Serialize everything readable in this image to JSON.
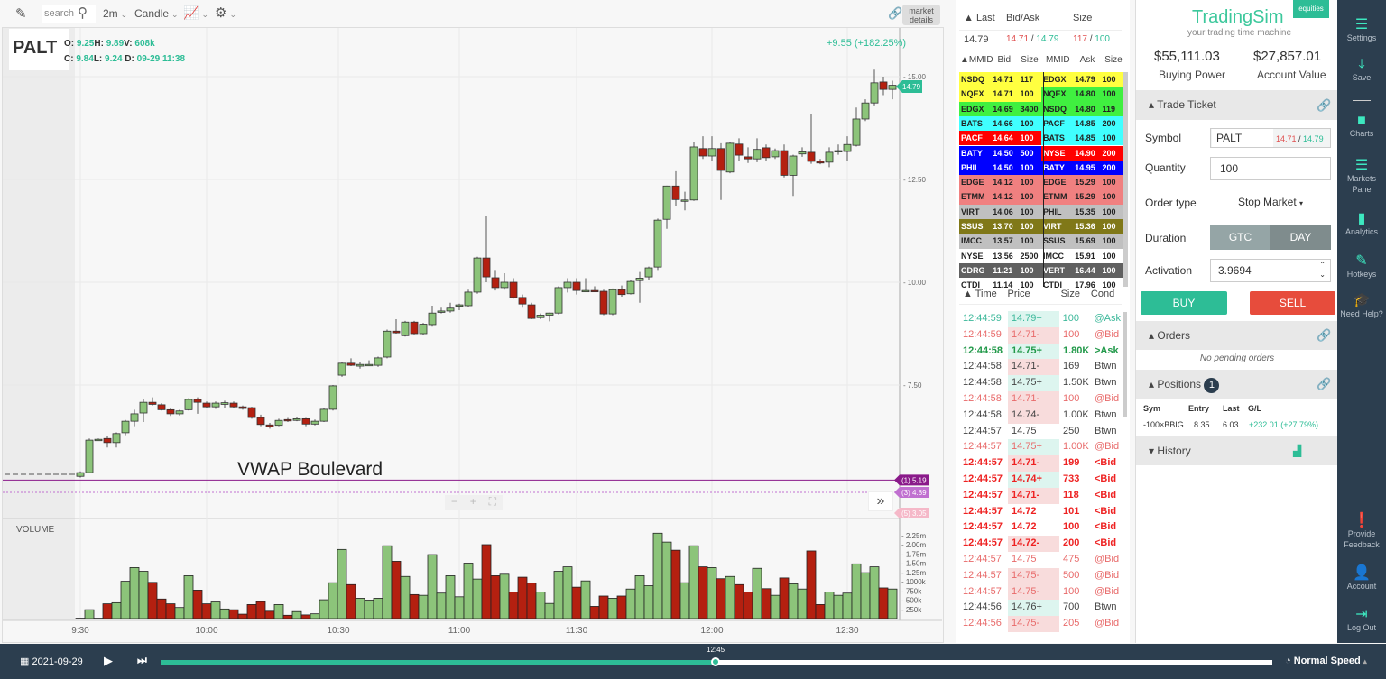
{
  "toolbar": {
    "search_placeholder": "search",
    "interval": "2m",
    "chart_type": "Candle",
    "market_details": "market details"
  },
  "symbol": {
    "ticker": "PALT",
    "o_label": "O:",
    "o": "9.25",
    "h_label": "H:",
    "h": "9.89",
    "v_label": "V:",
    "v": "608k",
    "c_label": "C:",
    "c": "9.84",
    "l_label": "L:",
    "l": "9.24",
    "d_label": "D:",
    "d": "09-29 11:38",
    "change": "+9.55 (+182.25%)",
    "last_tag": "14.79"
  },
  "colors": {
    "up": "#8cc47a",
    "down": "#b42010",
    "accent": "#2dbd96",
    "vwap1": "#8a1a8a",
    "vwap3": "#c070d0",
    "vwap5": "#f5b8c8"
  },
  "chart_data": {
    "type": "candlestick",
    "price_ticks": [
      15.0,
      12.5,
      10.0,
      7.5
    ],
    "price_tick_labels": [
      "15.00",
      "12.50",
      "10.00",
      "7.50"
    ],
    "x_ticks": [
      {
        "label": "9:30",
        "bar": 0
      },
      {
        "label": "10:00",
        "bar": 14
      },
      {
        "label": "10:30",
        "bar": 28.6
      },
      {
        "label": "11:00",
        "bar": 42
      },
      {
        "label": "11:30",
        "bar": 55
      },
      {
        "label": "12:00",
        "bar": 70
      },
      {
        "label": "12:30",
        "bar": 85
      }
    ],
    "ohlc": [
      [
        5.28,
        5.4,
        5.25,
        5.37
      ],
      [
        5.37,
        6.2,
        5.35,
        6.16
      ],
      [
        6.17,
        6.2,
        6.15,
        6.18
      ],
      [
        6.2,
        6.25,
        5.98,
        6.1
      ],
      [
        6.1,
        6.35,
        5.98,
        6.32
      ],
      [
        6.34,
        6.65,
        6.28,
        6.62
      ],
      [
        6.62,
        6.9,
        6.5,
        6.8
      ],
      [
        6.82,
        7.15,
        6.6,
        7.08
      ],
      [
        7.08,
        7.2,
        7.0,
        7.03
      ],
      [
        7.02,
        7.06,
        6.88,
        6.9
      ],
      [
        6.9,
        6.95,
        6.75,
        6.8
      ],
      [
        6.8,
        6.9,
        6.76,
        6.87
      ],
      [
        6.9,
        7.18,
        6.88,
        7.15
      ],
      [
        7.15,
        7.2,
        6.8,
        7.08
      ],
      [
        7.06,
        7.1,
        6.93,
        6.97
      ],
      [
        6.97,
        7.1,
        6.92,
        7.06
      ],
      [
        7.03,
        7.12,
        6.95,
        7.07
      ],
      [
        7.06,
        7.1,
        6.94,
        6.97
      ],
      [
        6.97,
        7.0,
        6.9,
        6.93
      ],
      [
        6.95,
        6.97,
        6.68,
        6.71
      ],
      [
        6.71,
        6.78,
        6.5,
        6.54
      ],
      [
        6.53,
        6.58,
        6.44,
        6.49
      ],
      [
        6.52,
        6.68,
        6.5,
        6.64
      ],
      [
        6.66,
        6.7,
        6.6,
        6.63
      ],
      [
        6.64,
        6.72,
        6.62,
        6.68
      ],
      [
        6.68,
        6.7,
        6.5,
        6.55
      ],
      [
        6.55,
        6.66,
        6.52,
        6.62
      ],
      [
        6.62,
        6.95,
        6.6,
        6.91
      ],
      [
        6.91,
        7.5,
        6.88,
        7.48
      ],
      [
        7.74,
        8.06,
        7.7,
        8.03
      ],
      [
        8.03,
        8.15,
        7.96,
        7.98
      ],
      [
        7.96,
        8.05,
        7.9,
        8.0
      ],
      [
        8.0,
        8.1,
        7.96,
        8.0
      ],
      [
        7.98,
        8.19,
        7.94,
        8.16
      ],
      [
        8.18,
        8.85,
        8.15,
        8.81
      ],
      [
        8.81,
        9.1,
        8.75,
        8.77
      ],
      [
        8.7,
        9.06,
        8.68,
        9.03
      ],
      [
        9.03,
        9.06,
        8.73,
        8.75
      ],
      [
        8.75,
        9.01,
        8.72,
        8.98
      ],
      [
        8.97,
        9.43,
        8.92,
        9.25
      ],
      [
        9.27,
        9.38,
        9.24,
        9.3
      ],
      [
        9.3,
        9.5,
        9.26,
        9.37
      ],
      [
        9.42,
        9.48,
        9.32,
        9.45
      ],
      [
        9.43,
        9.82,
        9.4,
        9.76
      ],
      [
        9.76,
        10.62,
        9.72,
        10.59
      ],
      [
        10.59,
        11.62,
        10.0,
        10.13
      ],
      [
        10.11,
        10.3,
        9.8,
        9.87
      ],
      [
        9.87,
        10.22,
        9.82,
        10.0
      ],
      [
        10.0,
        10.1,
        9.6,
        9.63
      ],
      [
        9.63,
        9.7,
        9.38,
        9.47
      ],
      [
        9.45,
        9.5,
        9.1,
        9.12
      ],
      [
        9.14,
        9.24,
        9.1,
        9.2
      ],
      [
        9.2,
        9.26,
        9.05,
        9.25
      ],
      [
        9.25,
        9.9,
        9.22,
        9.87
      ],
      [
        9.87,
        10.1,
        9.75,
        10.0
      ],
      [
        10.0,
        10.1,
        9.7,
        9.8
      ],
      [
        9.78,
        10.1,
        9.76,
        9.8
      ],
      [
        9.8,
        9.9,
        9.76,
        9.77
      ],
      [
        9.78,
        9.82,
        9.2,
        9.23
      ],
      [
        9.23,
        9.85,
        9.2,
        9.82
      ],
      [
        9.82,
        9.92,
        9.65,
        9.7
      ],
      [
        9.72,
        10.06,
        9.7,
        10.02
      ],
      [
        10.04,
        10.25,
        9.5,
        10.1
      ],
      [
        10.13,
        10.38,
        10.05,
        10.35
      ],
      [
        10.37,
        11.55,
        10.3,
        11.51
      ],
      [
        11.53,
        12.35,
        11.3,
        12.34
      ],
      [
        12.34,
        12.7,
        11.85,
        12.01
      ],
      [
        12.0,
        12.2,
        11.75,
        12.0
      ],
      [
        12.0,
        13.4,
        11.98,
        13.29
      ],
      [
        13.25,
        13.55,
        13.0,
        13.07
      ],
      [
        13.07,
        13.55,
        12.95,
        13.25
      ],
      [
        13.25,
        13.38,
        12.0,
        12.72
      ],
      [
        12.68,
        13.42,
        12.65,
        13.38
      ],
      [
        13.36,
        13.5,
        12.95,
        13.09
      ],
      [
        13.05,
        13.28,
        12.9,
        13.0
      ],
      [
        13.0,
        13.5,
        12.92,
        13.23
      ],
      [
        13.27,
        13.35,
        12.95,
        13.03
      ],
      [
        13.05,
        13.25,
        13.0,
        13.2
      ],
      [
        13.2,
        13.35,
        12.55,
        12.6
      ],
      [
        12.6,
        13.1,
        12.1,
        13.07
      ],
      [
        13.12,
        13.28,
        13.05,
        13.17
      ],
      [
        13.16,
        14.1,
        12.88,
        12.94
      ],
      [
        12.94,
        13.0,
        12.87,
        12.9
      ],
      [
        12.92,
        13.28,
        12.8,
        13.16
      ],
      [
        13.18,
        13.35,
        13.1,
        13.2
      ],
      [
        13.18,
        13.55,
        12.95,
        13.35
      ],
      [
        13.33,
        14.25,
        13.3,
        13.97
      ],
      [
        13.97,
        14.45,
        13.92,
        14.36
      ],
      [
        14.36,
        15.17,
        14.3,
        14.85
      ],
      [
        14.87,
        15.0,
        14.55,
        14.69
      ],
      [
        14.69,
        14.9,
        14.45,
        14.79
      ]
    ],
    "volume_label": "VOLUME",
    "volume_millions": [
      0.01,
      0.24,
      0.01,
      0.4,
      0.43,
      1.01,
      1.38,
      1.28,
      0.98,
      0.53,
      0.4,
      0.3,
      1.16,
      0.77,
      0.4,
      0.45,
      0.26,
      0.24,
      0.12,
      0.38,
      0.46,
      0.2,
      0.38,
      0.09,
      0.19,
      0.1,
      0.13,
      0.51,
      0.97,
      1.87,
      0.92,
      0.55,
      0.5,
      0.55,
      1.97,
      1.55,
      1.14,
      0.65,
      0.63,
      1.73,
      0.69,
      1.16,
      0.59,
      1.5,
      1.07,
      2.0,
      1.16,
      1.2,
      0.72,
      1.12,
      0.96,
      0.72,
      0.41,
      1.28,
      1.4,
      0.85,
      1.02,
      0.33,
      0.61,
      0.55,
      0.61,
      0.8,
      1.16,
      0.89,
      2.31,
      2.07,
      1.85,
      0.97,
      1.97,
      1.4,
      1.38,
      1.08,
      1.14,
      0.92,
      0.72,
      1.36,
      0.81,
      0.63,
      1.1,
      0.94,
      0.8,
      1.83,
      0.38,
      0.72,
      0.63,
      0.69,
      1.48,
      1.24,
      1.4,
      0.83,
      0.8
    ],
    "volume_ticks": [
      2.25,
      2.0,
      1.75,
      1.5,
      1.25,
      1.0,
      0.75,
      0.5,
      0.25
    ],
    "volume_tick_labels": [
      "2.25m",
      "2.00m",
      "1.75m",
      "1.50m",
      "1.25m",
      "1000k",
      "750k",
      "500k",
      "250k"
    ],
    "levels": [
      {
        "label": "(1) 5.19",
        "price": 5.19,
        "style": "solid"
      },
      {
        "label": "(3) 4.89",
        "price": 4.89,
        "style": "dotted"
      },
      {
        "label": "(5) 3.05",
        "price": 3.05,
        "style": "offscreen"
      }
    ],
    "annotation": "VWAP Boulevard"
  },
  "level2": {
    "hdr_last": "▲ Last",
    "hdr_bidask": "Bid/Ask",
    "hdr_size": "Size",
    "last": "14.79",
    "bid": "14.71",
    "ask": "14.79",
    "bid_size": "117",
    "ask_size": "100",
    "cols": [
      "▲MMID",
      "Bid",
      "Size",
      "MMID",
      "Ask",
      "Size"
    ],
    "palette": [
      "#ffff40",
      "#40f040",
      "#40ffff",
      "#ff0000",
      "#0000ff",
      "#f08080",
      "#c0c0c0",
      "#807818",
      "#ffffff",
      "#606060"
    ],
    "bids": [
      [
        "NSDQ",
        "14.71",
        "117",
        0
      ],
      [
        "NQEX",
        "14.71",
        "100",
        0
      ],
      [
        "EDGX",
        "14.69",
        "3400",
        1
      ],
      [
        "BATS",
        "14.66",
        "100",
        2
      ],
      [
        "PACF",
        "14.64",
        "100",
        3
      ],
      [
        "BATY",
        "14.50",
        "500",
        4
      ],
      [
        "PHIL",
        "14.50",
        "100",
        4
      ],
      [
        "EDGE",
        "14.12",
        "100",
        5
      ],
      [
        "ETMM",
        "14.12",
        "100",
        5
      ],
      [
        "VIRT",
        "14.06",
        "100",
        6
      ],
      [
        "SSUS",
        "13.70",
        "100",
        7
      ],
      [
        "IMCC",
        "13.57",
        "100",
        6
      ],
      [
        "NYSE",
        "13.56",
        "2500",
        8
      ],
      [
        "CDRG",
        "11.21",
        "100",
        9
      ],
      [
        "CTDI",
        "11.14",
        "100",
        8
      ]
    ],
    "asks": [
      [
        "EDGX",
        "14.79",
        "100",
        0
      ],
      [
        "NQEX",
        "14.80",
        "100",
        1
      ],
      [
        "NSDQ",
        "14.80",
        "119",
        1
      ],
      [
        "PACF",
        "14.85",
        "200",
        2
      ],
      [
        "BATS",
        "14.85",
        "100",
        2
      ],
      [
        "NYSE",
        "14.90",
        "200",
        3
      ],
      [
        "BATY",
        "14.95",
        "200",
        4
      ],
      [
        "EDGE",
        "15.29",
        "100",
        5
      ],
      [
        "ETMM",
        "15.29",
        "100",
        5
      ],
      [
        "PHIL",
        "15.35",
        "100",
        6
      ],
      [
        "VIRT",
        "15.36",
        "100",
        7
      ],
      [
        "SSUS",
        "15.69",
        "100",
        6
      ],
      [
        "IMCC",
        "15.91",
        "100",
        8
      ],
      [
        "VERT",
        "16.44",
        "100",
        9
      ],
      [
        "CTDI",
        "17.96",
        "100",
        8
      ]
    ]
  },
  "tape": {
    "cols": [
      "▲ Time",
      "Price",
      "Size",
      "Cond"
    ],
    "rows": [
      [
        "12:44:59",
        "14.79+",
        "100",
        "@Ask"
      ],
      [
        "12:44:59",
        "14.71-",
        "100",
        "@Bid"
      ],
      [
        "12:44:58",
        "14.75+",
        "1.80K",
        ">Ask"
      ],
      [
        "12:44:58",
        "14.71-",
        "169",
        "Btwn"
      ],
      [
        "12:44:58",
        "14.75+",
        "1.50K",
        "Btwn"
      ],
      [
        "12:44:58",
        "14.71-",
        "100",
        "@Bid"
      ],
      [
        "12:44:58",
        "14.74-",
        "1.00K",
        "Btwn"
      ],
      [
        "12:44:57",
        "14.75",
        "250",
        "Btwn"
      ],
      [
        "12:44:57",
        "14.75+",
        "1.00K",
        "@Bid"
      ],
      [
        "12:44:57",
        "14.71-",
        "199",
        "<Bid"
      ],
      [
        "12:44:57",
        "14.74+",
        "733",
        "<Bid"
      ],
      [
        "12:44:57",
        "14.71-",
        "118",
        "<Bid"
      ],
      [
        "12:44:57",
        "14.72",
        "101",
        "<Bid"
      ],
      [
        "12:44:57",
        "14.72",
        "100",
        "<Bid"
      ],
      [
        "12:44:57",
        "14.72-",
        "200",
        "<Bid"
      ],
      [
        "12:44:57",
        "14.75",
        "475",
        "@Bid"
      ],
      [
        "12:44:57",
        "14.75-",
        "500",
        "@Bid"
      ],
      [
        "12:44:57",
        "14.75-",
        "100",
        "@Bid"
      ],
      [
        "12:44:56",
        "14.76+",
        "700",
        "Btwn"
      ],
      [
        "12:44:56",
        "14.75-",
        "205",
        "@Bid"
      ]
    ]
  },
  "panel": {
    "brand": "TradingSim",
    "badge": "equities",
    "tagline": "your trading time machine",
    "buying_power": "$55,111.03",
    "buying_power_label": "Buying Power",
    "account_value": "$27,857.01",
    "account_value_label": "Account Value",
    "trade_ticket": "Trade Ticket",
    "symbol_label": "Symbol",
    "symbol": "PALT",
    "sym_bid": "14.71",
    "sym_ask": "14.79",
    "quantity_label": "Quantity",
    "quantity": "100",
    "order_type_label": "Order type",
    "order_type": "Stop Market",
    "duration_label": "Duration",
    "gtc": "GTC",
    "day": "DAY",
    "activation_label": "Activation",
    "activation": "3.9694",
    "buy": "BUY",
    "sell": "SELL",
    "orders": "Orders",
    "no_orders": "No pending orders",
    "positions": "Positions",
    "positions_count": "1",
    "pos_cols": [
      "Sym",
      "Entry",
      "Last",
      "G/L"
    ],
    "pos_row": [
      "-100×BBIG",
      "8.35",
      "6.03",
      "+232.01 (+27.79%)"
    ],
    "history": "History"
  },
  "sidebar": [
    {
      "label": "Settings",
      "icon": "☰"
    },
    {
      "label": "Save",
      "icon": "⤓"
    },
    {
      "label": "Charts",
      "icon": "■"
    },
    {
      "label": "Markets Pane",
      "icon": "☰"
    },
    {
      "label": "Analytics",
      "icon": "▮"
    },
    {
      "label": "Hotkeys",
      "icon": "✎"
    },
    {
      "label": "Need Help?",
      "icon": "🎓"
    },
    {
      "label": "Provide Feedback",
      "icon": "❗"
    },
    {
      "label": "Account",
      "icon": "👤"
    },
    {
      "label": "Log Out",
      "icon": "⇥"
    }
  ],
  "replay": {
    "date": "2021-09-29",
    "time": "12:45",
    "progress": 0.5,
    "speed": "Normal Speed"
  }
}
